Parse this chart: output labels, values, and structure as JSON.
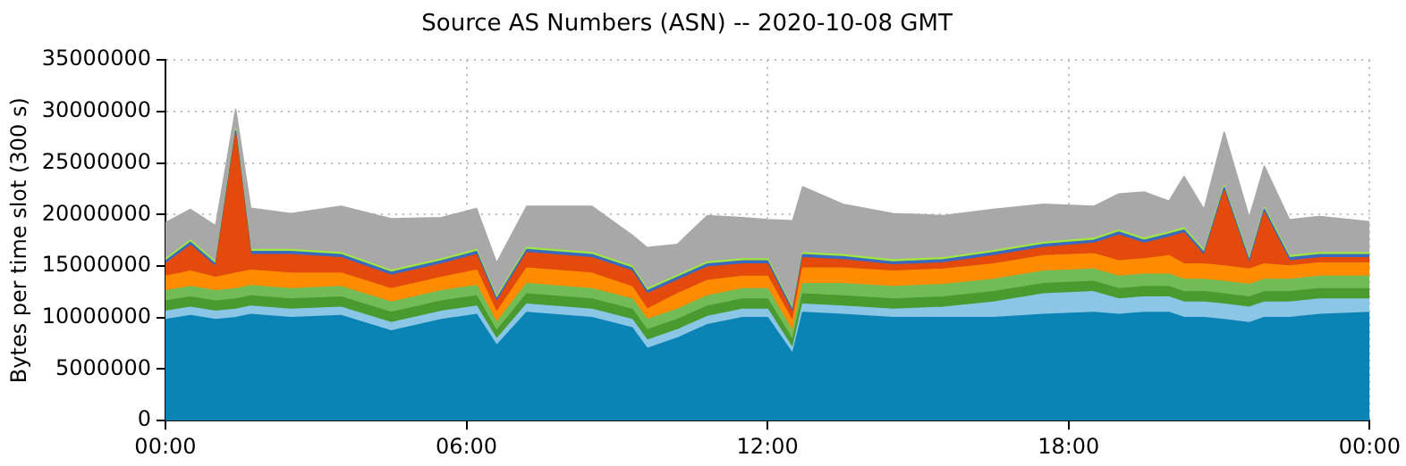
{
  "chart_data": {
    "type": "area",
    "stacked": true,
    "title": "Source AS Numbers (ASN) -- 2020-10-08 GMT",
    "ylabel": "Bytes per time slot (300 s)",
    "x": [
      0,
      0.5,
      1,
      1.4,
      1.7,
      2.5,
      3.5,
      4.5,
      5.5,
      6.2,
      6.6,
      7.2,
      8.5,
      9.3,
      9.6,
      10.2,
      10.8,
      11.5,
      12,
      12.5,
      12.7,
      13.5,
      14.5,
      15.5,
      16.5,
      17.5,
      18.5,
      19,
      19.5,
      20,
      20.3,
      20.7,
      21.1,
      21.6,
      21.9,
      22.4,
      23,
      24
    ],
    "series": [
      {
        "color": "#0a84b4",
        "values": [
          9800000,
          10200000,
          9800000,
          10000000,
          10300000,
          10000000,
          10200000,
          8700000,
          9800000,
          10300000,
          7300000,
          10500000,
          10000000,
          9000000,
          7000000,
          8000000,
          9300000,
          10000000,
          10000000,
          6500000,
          10500000,
          10300000,
          10000000,
          10000000,
          10000000,
          10300000,
          10500000,
          10300000,
          10500000,
          10500000,
          10000000,
          10000000,
          9800000,
          9500000,
          10000000,
          10000000,
          10300000,
          10500000
        ]
      },
      {
        "color": "#8cc6e6",
        "values": [
          800000,
          800000,
          800000,
          800000,
          800000,
          800000,
          800000,
          800000,
          800000,
          800000,
          600000,
          800000,
          800000,
          800000,
          800000,
          800000,
          800000,
          800000,
          800000,
          500000,
          800000,
          800000,
          800000,
          1000000,
          1500000,
          2000000,
          2000000,
          1500000,
          1500000,
          1500000,
          1500000,
          1500000,
          1500000,
          1500000,
          1500000,
          1500000,
          1500000,
          1300000
        ]
      },
      {
        "color": "#4a9a30",
        "values": [
          1000000,
          1000000,
          1000000,
          1000000,
          1000000,
          1000000,
          1000000,
          1000000,
          1000000,
          1000000,
          800000,
          1000000,
          1000000,
          1000000,
          1000000,
          1000000,
          1000000,
          1000000,
          1000000,
          800000,
          1000000,
          1000000,
          1000000,
          1000000,
          1000000,
          1000000,
          1000000,
          1000000,
          1000000,
          1000000,
          1000000,
          1000000,
          1000000,
          1000000,
          1000000,
          1000000,
          1000000,
          1000000
        ]
      },
      {
        "color": "#72bc58",
        "values": [
          1000000,
          1000000,
          1000000,
          1000000,
          1000000,
          1000000,
          1000000,
          1000000,
          1000000,
          1000000,
          800000,
          1000000,
          1000000,
          1000000,
          1000000,
          1000000,
          1000000,
          1000000,
          1000000,
          800000,
          1000000,
          1200000,
          1200000,
          1200000,
          1200000,
          1200000,
          1200000,
          1200000,
          1200000,
          1200000,
          1200000,
          1200000,
          1200000,
          1200000,
          1200000,
          1200000,
          1200000,
          1200000
        ]
      },
      {
        "color": "#ff8c00",
        "values": [
          1400000,
          1500000,
          1300000,
          1500000,
          1500000,
          1500000,
          1300000,
          1300000,
          1300000,
          1500000,
          1000000,
          1500000,
          1500000,
          1200000,
          1000000,
          1500000,
          1500000,
          1200000,
          1200000,
          1000000,
          1500000,
          1500000,
          1500000,
          1500000,
          1500000,
          1500000,
          1500000,
          1500000,
          1500000,
          1800000,
          1500000,
          1500000,
          1500000,
          1500000,
          1500000,
          1300000,
          1300000,
          1300000
        ]
      },
      {
        "color": "#e44a0c",
        "values": [
          1200000,
          2500000,
          1000000,
          13500000,
          1500000,
          1800000,
          1500000,
          1300000,
          1300000,
          1500000,
          1000000,
          1500000,
          1500000,
          1500000,
          1500000,
          1300000,
          1300000,
          1200000,
          1200000,
          800000,
          1000000,
          800000,
          600000,
          600000,
          800000,
          800000,
          1000000,
          2500000,
          1500000,
          1800000,
          3000000,
          800000,
          7300000,
          500000,
          5000000,
          500000,
          500000,
          500000
        ]
      },
      {
        "color": "#3a6ac0",
        "values": [
          300000,
          300000,
          300000,
          300000,
          300000,
          300000,
          300000,
          300000,
          300000,
          300000,
          300000,
          300000,
          300000,
          300000,
          300000,
          300000,
          300000,
          300000,
          300000,
          300000,
          300000,
          300000,
          300000,
          300000,
          300000,
          300000,
          300000,
          300000,
          300000,
          300000,
          300000,
          300000,
          300000,
          300000,
          300000,
          300000,
          300000,
          300000
        ]
      },
      {
        "color": "#a0e840",
        "values": [
          200000,
          200000,
          200000,
          200000,
          200000,
          200000,
          200000,
          200000,
          200000,
          200000,
          200000,
          200000,
          200000,
          200000,
          200000,
          200000,
          200000,
          200000,
          200000,
          200000,
          200000,
          200000,
          200000,
          200000,
          200000,
          200000,
          200000,
          200000,
          200000,
          200000,
          200000,
          200000,
          200000,
          200000,
          200000,
          200000,
          200000,
          200000
        ]
      },
      {
        "color": "#a8a8a8",
        "values": [
          3500000,
          3000000,
          3500000,
          1900000,
          4000000,
          3500000,
          4500000,
          5000000,
          4000000,
          4000000,
          3300000,
          4000000,
          4500000,
          3000000,
          4000000,
          3000000,
          4500000,
          4000000,
          3800000,
          8500000,
          6400000,
          4900000,
          4500000,
          4100000,
          4000000,
          3700000,
          3100000,
          3500000,
          4500000,
          3000000,
          5000000,
          4000000,
          5200000,
          4000000,
          4000000,
          3500000,
          3500000,
          3000000
        ]
      }
    ],
    "xlim": [
      0,
      24
    ],
    "xticks": [
      {
        "value": 0,
        "label": "00:00"
      },
      {
        "value": 6,
        "label": "06:00"
      },
      {
        "value": 12,
        "label": "12:00"
      },
      {
        "value": 18,
        "label": "18:00"
      },
      {
        "value": 24,
        "label": "00:00"
      }
    ],
    "ylim": [
      0,
      35000000
    ],
    "yticks": [
      0,
      5000000,
      10000000,
      15000000,
      20000000,
      25000000,
      30000000,
      35000000
    ],
    "grid": true,
    "line_style": "dotted",
    "legend": false
  }
}
